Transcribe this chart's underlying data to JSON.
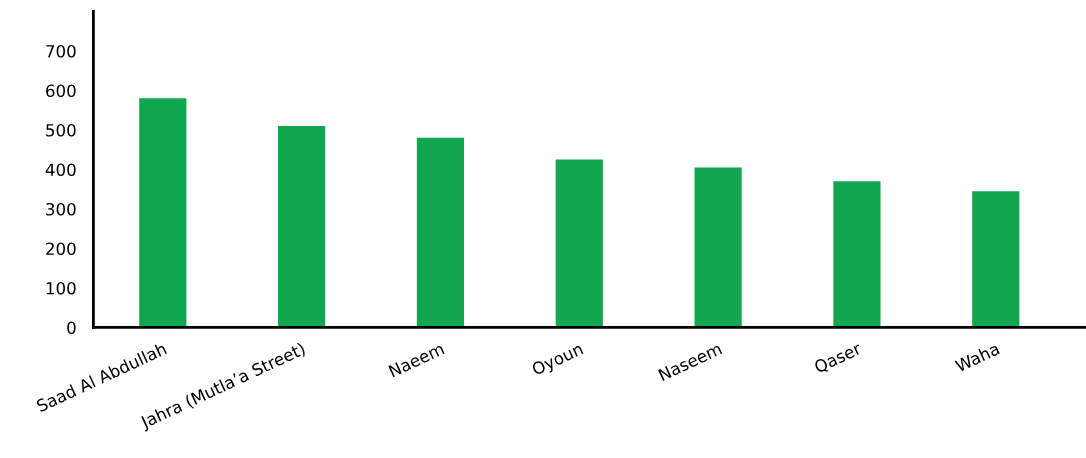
{
  "chart_data": {
    "type": "bar",
    "categories": [
      "Saad Al Abdullah",
      "Jahra (Mutla’a Street)",
      "Naeem",
      "Oyoun",
      "Naseem",
      "Qaser",
      "Waha"
    ],
    "values": [
      580,
      510,
      480,
      425,
      405,
      370,
      345
    ],
    "color": "#12a650",
    "ylim": [
      0,
      800
    ],
    "yticks": [
      0,
      100,
      200,
      300,
      400,
      500,
      600,
      700
    ],
    "grid": false
  }
}
